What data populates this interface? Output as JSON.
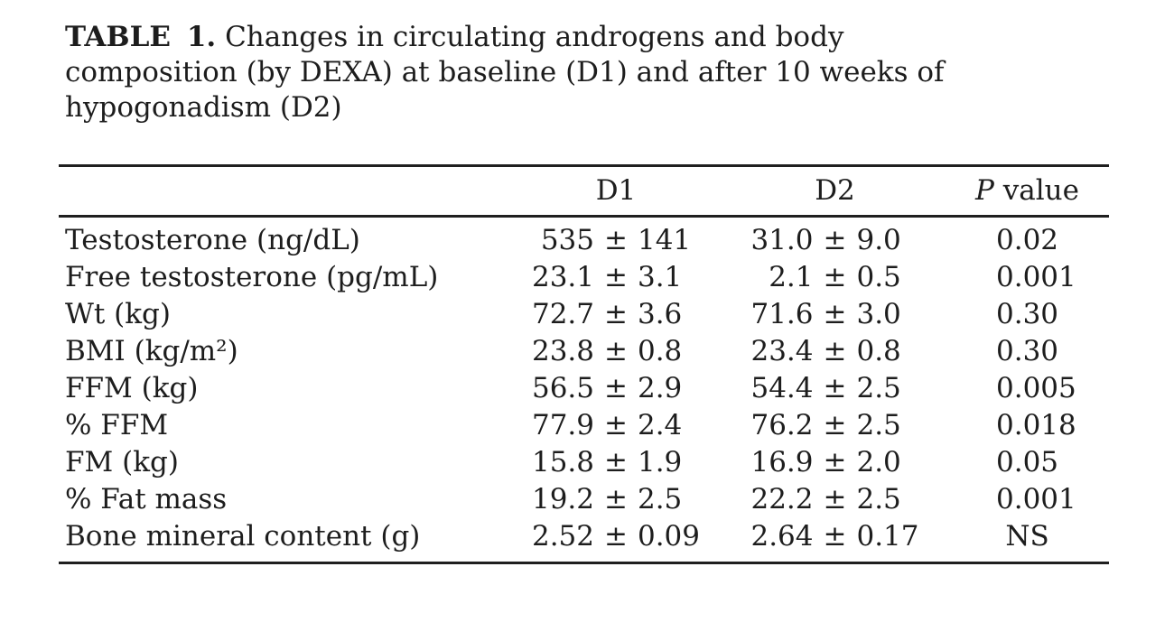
{
  "table": {
    "title": {
      "bold": "TABLE 1.",
      "line1_rest": "Changes in circulating androgens and body",
      "line2": "composition (by DEXA) at baseline (D1) and after 10 weeks of",
      "line3": "hypogonadism (D2)"
    },
    "columns": {
      "label": "",
      "d1": "D1",
      "d2": "D2",
      "p_italic": "P",
      "p_rest": "value"
    },
    "plus_minus_sign": "±",
    "rows": [
      {
        "label": "Testosterone (ng/dL)",
        "d1": "535 ± 141",
        "d2": "31.0 ± 9.0",
        "p": "0.02"
      },
      {
        "label": "Free testosterone (pg/mL)",
        "d1": "23.1 ± 3.1",
        "d2": "2.1 ± 0.5",
        "p": "0.001"
      },
      {
        "label": "Wt (kg)",
        "d1": "72.7 ± 3.6",
        "d2": "71.6 ± 3.0",
        "p": "0.30"
      },
      {
        "label": "BMI (kg/m²)",
        "d1": "23.8 ± 0.8",
        "d2": "23.4 ± 0.8",
        "p": "0.30"
      },
      {
        "label": "FFM (kg)",
        "d1": "56.5 ± 2.9",
        "d2": "54.4 ± 2.5",
        "p": "0.005"
      },
      {
        "label": "% FFM",
        "d1": "77.9 ± 2.4",
        "d2": "76.2 ± 2.5",
        "p": "0.018"
      },
      {
        "label": "FM (kg)",
        "d1": "15.8 ± 1.9",
        "d2": "16.9 ± 2.0",
        "p": "0.05"
      },
      {
        "label": "% Fat mass",
        "d1": "19.2 ± 2.5",
        "d2": "22.2 ± 2.5",
        "p": "0.001"
      },
      {
        "label": "Bone mineral content (g)",
        "d1": "2.52 ± 0.09",
        "d2": "2.64 ± 0.17",
        "p": "NS"
      }
    ],
    "not_significant_label": "NS",
    "colors": {
      "text": "#1d1d1d",
      "rule": "#1f1f1f",
      "background": "#ffffff"
    }
  }
}
